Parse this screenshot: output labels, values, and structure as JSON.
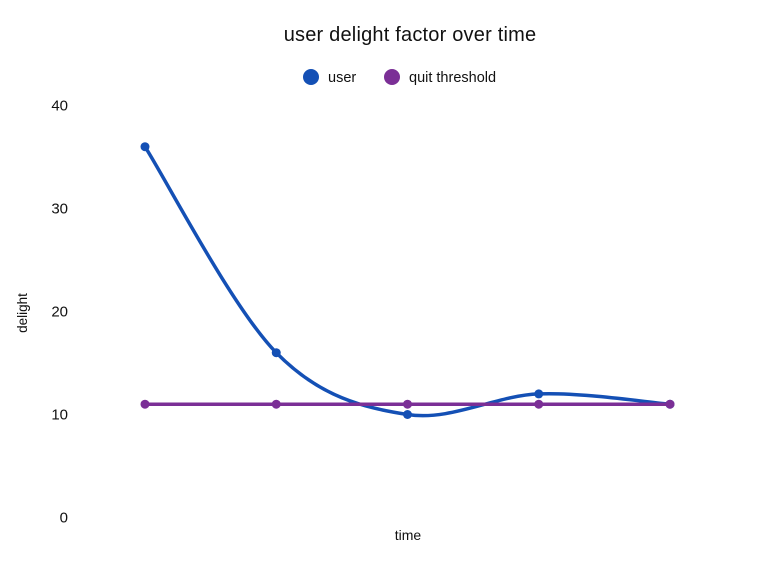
{
  "chart_data": {
    "type": "line",
    "title": "user delight factor over time",
    "xlabel": "time",
    "ylabel": "delight",
    "yticks": [
      0,
      10,
      20,
      30,
      40
    ],
    "ylim": [
      0,
      40
    ],
    "x_count": 5,
    "grid": false,
    "axes_visible": false,
    "legend_position": "top-center",
    "smooth": true,
    "background": "#ffffff",
    "text_color": "#111111",
    "series": [
      {
        "name": "user",
        "color": "#1450b5",
        "values": [
          36,
          16,
          10,
          12,
          11
        ]
      },
      {
        "name": "quit threshold",
        "color": "#7b2f96",
        "values": [
          11,
          11,
          11,
          11,
          11
        ]
      }
    ]
  }
}
